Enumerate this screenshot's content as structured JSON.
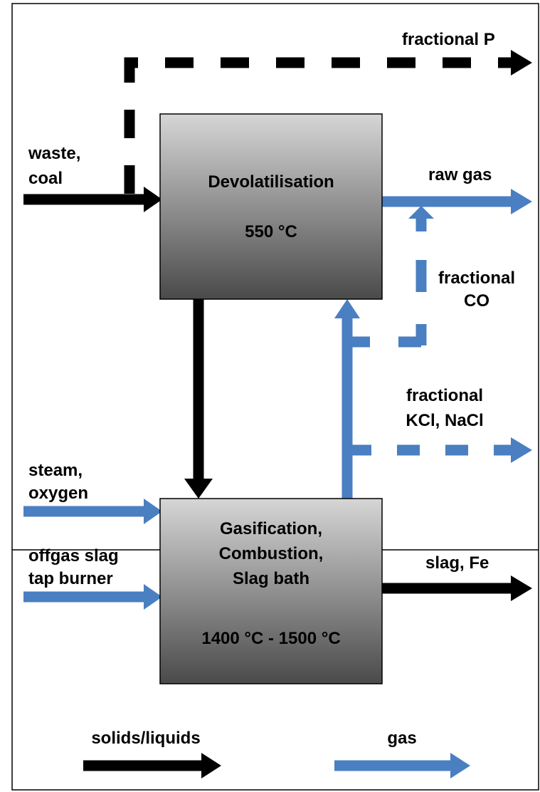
{
  "nodes": [
    {
      "label": [
        "Devolatilisation"
      ],
      "temperature": "550 °C"
    },
    {
      "label": [
        "Gasification,",
        "Combustion,",
        "Slag bath"
      ],
      "temperature": "1400 °C - 1500 °C"
    }
  ],
  "flows": {
    "fractional_p": [
      "fractional P"
    ],
    "waste_coal": [
      "waste,",
      "coal"
    ],
    "raw_gas": [
      "raw gas"
    ],
    "fractional_co": [
      "fractional",
      "CO"
    ],
    "fractional_kcl": [
      "fractional",
      "KCl, NaCl"
    ],
    "steam_oxygen": [
      "steam,",
      "oxygen"
    ],
    "offgas": [
      "offgas slag",
      "tap burner"
    ],
    "slag_fe": [
      "slag, Fe"
    ]
  },
  "legend": {
    "solids": "solids/liquids",
    "gas": "gas"
  }
}
